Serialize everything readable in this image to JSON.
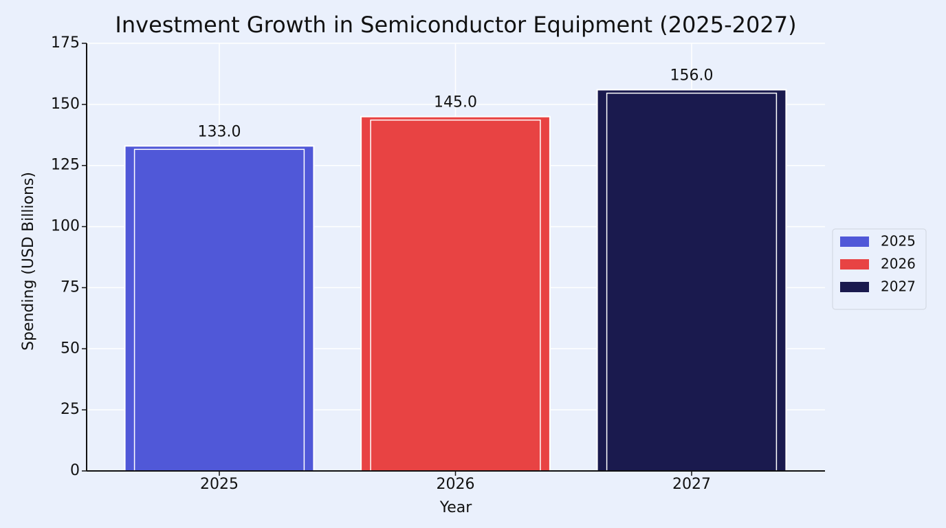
{
  "chart_data": {
    "type": "bar",
    "title": "Investment Growth in Semiconductor Equipment (2025-2027)",
    "x_label": "Year",
    "y_label": "Spending (USD Billions)",
    "categories": [
      "2025",
      "2026",
      "2027"
    ],
    "values": [
      133,
      145,
      156
    ],
    "value_labels": [
      "133.0",
      "145.0",
      "156.0"
    ],
    "colors": [
      "#5058d8",
      "#e84343",
      "#1a1a4e"
    ],
    "ylim": [
      0,
      175
    ],
    "yticks": [
      0,
      25,
      50,
      75,
      100,
      125,
      150,
      175
    ],
    "grid": true,
    "legend": "right"
  }
}
